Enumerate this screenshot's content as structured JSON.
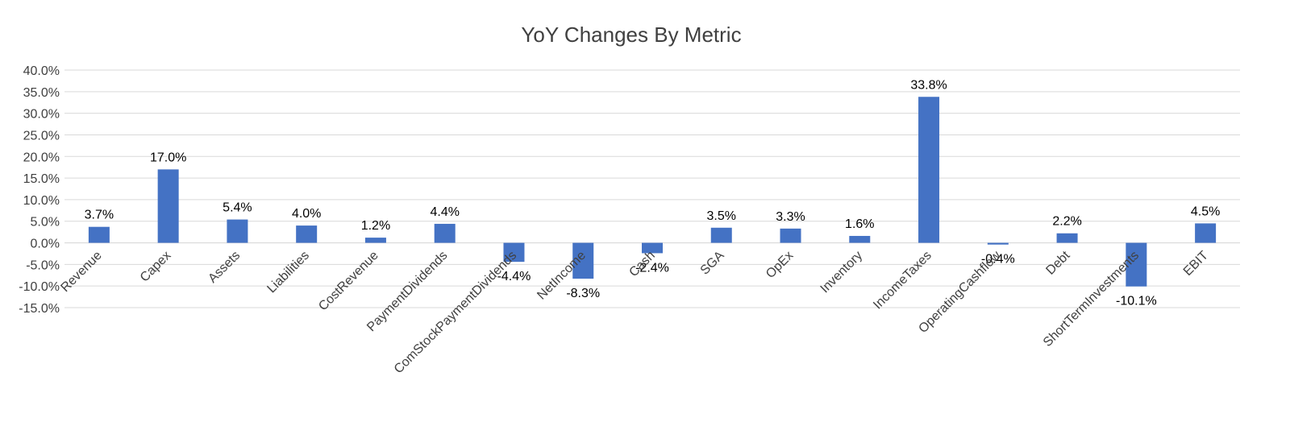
{
  "chart_data": {
    "type": "bar",
    "title": "YoY Changes By Metric",
    "xlabel": "",
    "ylabel": "",
    "ylim": [
      -15,
      40
    ],
    "ytick_step": 5,
    "ytick_labels": [
      "40.0%",
      "35.0%",
      "30.0%",
      "25.0%",
      "20.0%",
      "15.0%",
      "10.0%",
      "5.0%",
      "0.0%",
      "-5.0%",
      "-10.0%",
      "-15.0%"
    ],
    "categories": [
      "Revenue",
      "Capex",
      "Assets",
      "Liabilities",
      "CostRevenue",
      "PaymentDividends",
      "ComStockPaymentDividends",
      "NetIncome",
      "Cash",
      "SGA",
      "OpEx",
      "Inventory",
      "IncomeTaxes",
      "OperatingCashflow",
      "Debt",
      "ShortTermInvestments",
      "EBIT"
    ],
    "values": [
      3.7,
      17.0,
      5.4,
      4.0,
      1.2,
      4.4,
      -4.4,
      -8.3,
      -2.4,
      3.5,
      3.3,
      1.6,
      33.8,
      -0.4,
      2.2,
      -10.1,
      4.5
    ],
    "data_labels": [
      "3.7%",
      "17.0%",
      "5.4%",
      "4.0%",
      "1.2%",
      "4.4%",
      "-4.4%",
      "-8.3%",
      "-2.4%",
      "3.5%",
      "3.3%",
      "1.6%",
      "33.8%",
      "-0.4%",
      "2.2%",
      "-10.1%",
      "4.5%"
    ],
    "grid": true,
    "legend": "none",
    "colors": {
      "bar": "#4472c4",
      "grid": "#d9d9d9",
      "text": "#404040"
    }
  }
}
